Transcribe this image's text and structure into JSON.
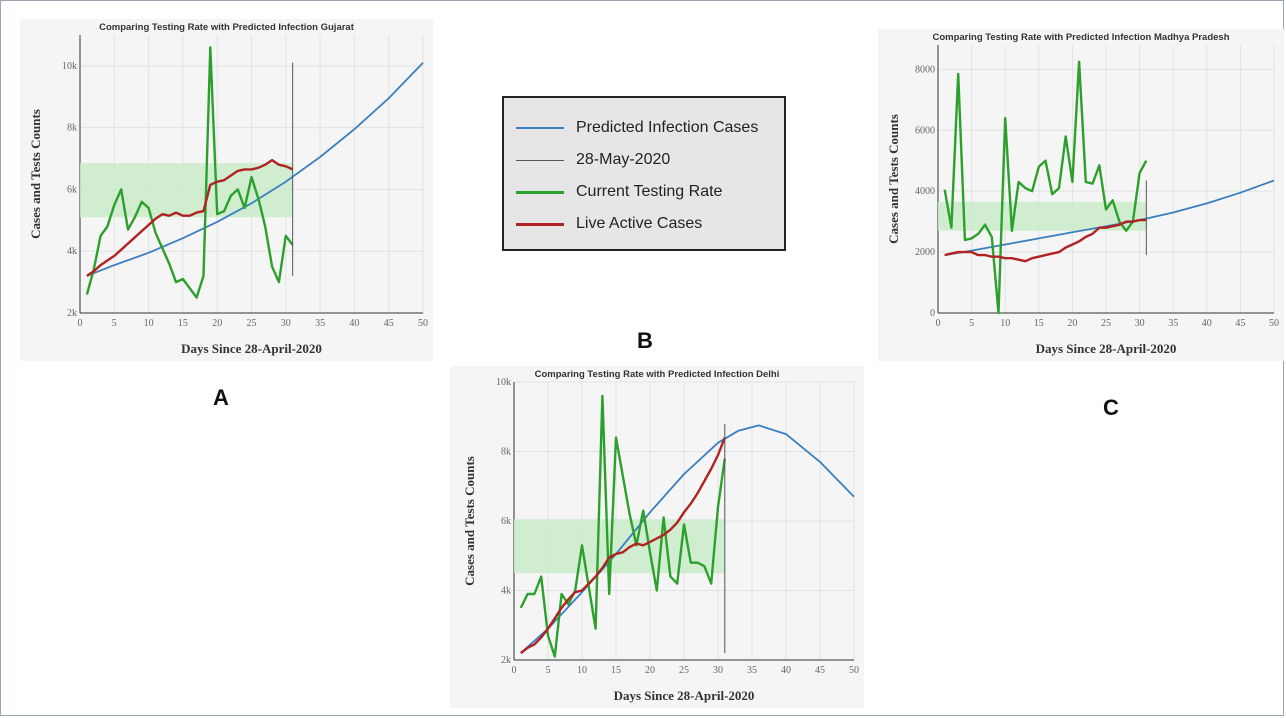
{
  "colors": {
    "predicted": "#3a7fc0",
    "date_line": "#555555",
    "testing": "#2ca02c",
    "active": "#b22222",
    "band": "#c9ebc9",
    "grid": "#e2e2e2",
    "plot_bg": "#f5f5f5"
  },
  "legend": {
    "items": [
      {
        "label": "Predicted Infection Cases",
        "color": "#3a7fc0",
        "width": 2
      },
      {
        "label": "28-May-2020",
        "color": "#555555",
        "width": 1
      },
      {
        "label": "Current Testing Rate",
        "color": "#2ca02c",
        "width": 3
      },
      {
        "label": "Live Active Cases",
        "color": "#b22222",
        "width": 3
      }
    ]
  },
  "panel_labels": {
    "a": "A",
    "b": "B",
    "c": "C"
  },
  "chart_data": [
    {
      "id": "gujarat",
      "type": "line",
      "title": "Comparing Testing Rate with Predicted Infection Gujarat",
      "xlabel": "Days Since 28-April-2020",
      "ylabel": "Cases and Tests Counts",
      "xlim": [
        0,
        50
      ],
      "ylim": [
        2000,
        11000
      ],
      "xticks": [
        0,
        5,
        10,
        15,
        20,
        25,
        30,
        35,
        40,
        45,
        50
      ],
      "yticks": [
        2000,
        4000,
        6000,
        8000,
        10000
      ],
      "ytick_labels": [
        "2k",
        "4k",
        "6k",
        "8k",
        "10k"
      ],
      "grid": true,
      "vline": {
        "x": 31,
        "y": [
          3200,
          10100
        ]
      },
      "band": {
        "x": [
          0,
          31
        ],
        "y": [
          5100,
          6850
        ]
      },
      "series": [
        {
          "name": "Predicted Infection Cases",
          "x": [
            1,
            5,
            10,
            15,
            20,
            25,
            30,
            35,
            40,
            45,
            50
          ],
          "values": [
            3200,
            3550,
            3950,
            4420,
            4950,
            5550,
            6250,
            7050,
            7950,
            8950,
            10100
          ]
        },
        {
          "name": "Current Testing Rate",
          "x": [
            1,
            2,
            3,
            4,
            5,
            6,
            7,
            8,
            9,
            10,
            11,
            12,
            13,
            14,
            15,
            16,
            17,
            18,
            19,
            20,
            21,
            22,
            23,
            24,
            25,
            26,
            27,
            28,
            29,
            30,
            31
          ],
          "values": [
            2600,
            3400,
            4500,
            4800,
            5500,
            6000,
            4700,
            5100,
            5600,
            5400,
            4600,
            4100,
            3600,
            3000,
            3100,
            2800,
            2500,
            3200,
            10600,
            5200,
            5300,
            5800,
            6000,
            5400,
            6400,
            5700,
            4800,
            3500,
            3000,
            4500,
            4200
          ]
        },
        {
          "name": "Live Active Cases",
          "x": [
            1,
            2,
            3,
            4,
            5,
            6,
            7,
            8,
            9,
            10,
            11,
            12,
            13,
            14,
            15,
            16,
            17,
            18,
            19,
            20,
            21,
            22,
            23,
            24,
            25,
            26,
            27,
            28,
            29,
            30,
            31
          ],
          "values": [
            3200,
            3350,
            3550,
            3700,
            3850,
            4050,
            4250,
            4450,
            4650,
            4850,
            5050,
            5200,
            5150,
            5250,
            5150,
            5150,
            5250,
            5300,
            6150,
            6250,
            6300,
            6450,
            6600,
            6650,
            6650,
            6700,
            6800,
            6950,
            6800,
            6750,
            6650
          ]
        }
      ]
    },
    {
      "id": "madhya-pradesh",
      "type": "line",
      "title": "Comparing Testing Rate with Predicted Infection Madhya Pradesh",
      "xlabel": "Days Since 28-April-2020",
      "ylabel": "Cases and Tests Counts",
      "xlim": [
        0,
        50
      ],
      "ylim": [
        0,
        8800
      ],
      "xticks": [
        0,
        5,
        10,
        15,
        20,
        25,
        30,
        35,
        40,
        45,
        50
      ],
      "yticks": [
        0,
        2000,
        4000,
        6000,
        8000
      ],
      "ytick_labels": [
        "0",
        "2000",
        "4000",
        "6000",
        "8000"
      ],
      "grid": true,
      "vline": {
        "x": 31,
        "y": [
          1900,
          4350
        ]
      },
      "band": {
        "x": [
          0,
          31
        ],
        "y": [
          2700,
          3650
        ]
      },
      "series": [
        {
          "name": "Predicted Infection Cases",
          "x": [
            1,
            5,
            10,
            15,
            20,
            25,
            30,
            35,
            40,
            45,
            50
          ],
          "values": [
            1900,
            2050,
            2250,
            2450,
            2650,
            2850,
            3050,
            3300,
            3600,
            3950,
            4350
          ]
        },
        {
          "name": "Current Testing Rate",
          "x": [
            1,
            2,
            3,
            4,
            5,
            6,
            7,
            8,
            9,
            10,
            11,
            12,
            13,
            14,
            15,
            16,
            17,
            18,
            19,
            20,
            21,
            22,
            23,
            24,
            25,
            26,
            27,
            28,
            29,
            30,
            31
          ],
          "values": [
            4050,
            2800,
            7850,
            2400,
            2450,
            2600,
            2900,
            2500,
            0,
            6400,
            2700,
            4300,
            4100,
            4000,
            4800,
            5000,
            3900,
            4100,
            5800,
            4300,
            8250,
            4300,
            4250,
            4850,
            3400,
            3700,
            3000,
            2700,
            3000,
            4600,
            5000
          ]
        },
        {
          "name": "Live Active Cases",
          "x": [
            1,
            2,
            3,
            4,
            5,
            6,
            7,
            8,
            9,
            10,
            11,
            12,
            13,
            14,
            15,
            16,
            17,
            18,
            19,
            20,
            21,
            22,
            23,
            24,
            25,
            26,
            27,
            28,
            29,
            30,
            31
          ],
          "values": [
            1900,
            1950,
            2000,
            2000,
            2000,
            1900,
            1900,
            1850,
            1850,
            1800,
            1800,
            1750,
            1700,
            1800,
            1850,
            1900,
            1950,
            2000,
            2150,
            2250,
            2350,
            2500,
            2600,
            2800,
            2800,
            2850,
            2900,
            3000,
            3000,
            3050,
            3050
          ]
        }
      ]
    },
    {
      "id": "delhi",
      "type": "line",
      "title": "Comparing Testing Rate with Predicted Infection Delhi",
      "xlabel": "Days Since 28-April-2020",
      "ylabel": "Cases and Tests Counts",
      "xlim": [
        0,
        50
      ],
      "ylim": [
        2000,
        10000
      ],
      "xticks": [
        0,
        5,
        10,
        15,
        20,
        25,
        30,
        35,
        40,
        45,
        50
      ],
      "yticks": [
        2000,
        4000,
        6000,
        8000,
        10000
      ],
      "ytick_labels": [
        "2k",
        "4k",
        "6k",
        "8k",
        "10k"
      ],
      "grid": true,
      "vline": {
        "x": 31,
        "y": [
          2200,
          8800
        ]
      },
      "band": {
        "x": [
          0,
          31
        ],
        "y": [
          4500,
          6050
        ]
      },
      "series": [
        {
          "name": "Predicted Infection Cases",
          "x": [
            1,
            5,
            10,
            15,
            20,
            25,
            30,
            33,
            36,
            40,
            45,
            50
          ],
          "values": [
            2200,
            2900,
            3950,
            5050,
            6250,
            7350,
            8250,
            8600,
            8750,
            8500,
            7700,
            6700
          ]
        },
        {
          "name": "Current Testing Rate",
          "x": [
            1,
            2,
            3,
            4,
            5,
            6,
            7,
            8,
            9,
            10,
            11,
            12,
            13,
            14,
            15,
            16,
            17,
            18,
            19,
            20,
            21,
            22,
            23,
            24,
            25,
            26,
            27,
            28,
            29,
            30,
            31
          ],
          "values": [
            3500,
            3900,
            3900,
            4400,
            2700,
            2100,
            3900,
            3600,
            4000,
            5300,
            4100,
            2900,
            9600,
            3900,
            8400,
            7300,
            6200,
            5300,
            6300,
            5100,
            4000,
            6100,
            4400,
            4200,
            5900,
            4800,
            4800,
            4700,
            4200,
            6400,
            7800
          ]
        },
        {
          "name": "Live Active Cases",
          "x": [
            1,
            2,
            3,
            4,
            5,
            6,
            7,
            8,
            9,
            10,
            11,
            12,
            13,
            14,
            15,
            16,
            17,
            18,
            19,
            20,
            21,
            22,
            23,
            24,
            25,
            26,
            27,
            28,
            29,
            30,
            31
          ],
          "values": [
            2200,
            2350,
            2450,
            2650,
            2900,
            3200,
            3500,
            3750,
            3950,
            4000,
            4200,
            4400,
            4650,
            4950,
            5050,
            5100,
            5250,
            5350,
            5300,
            5400,
            5500,
            5600,
            5750,
            5950,
            6250,
            6500,
            6800,
            7150,
            7500,
            7900,
            8400
          ]
        }
      ]
    }
  ]
}
